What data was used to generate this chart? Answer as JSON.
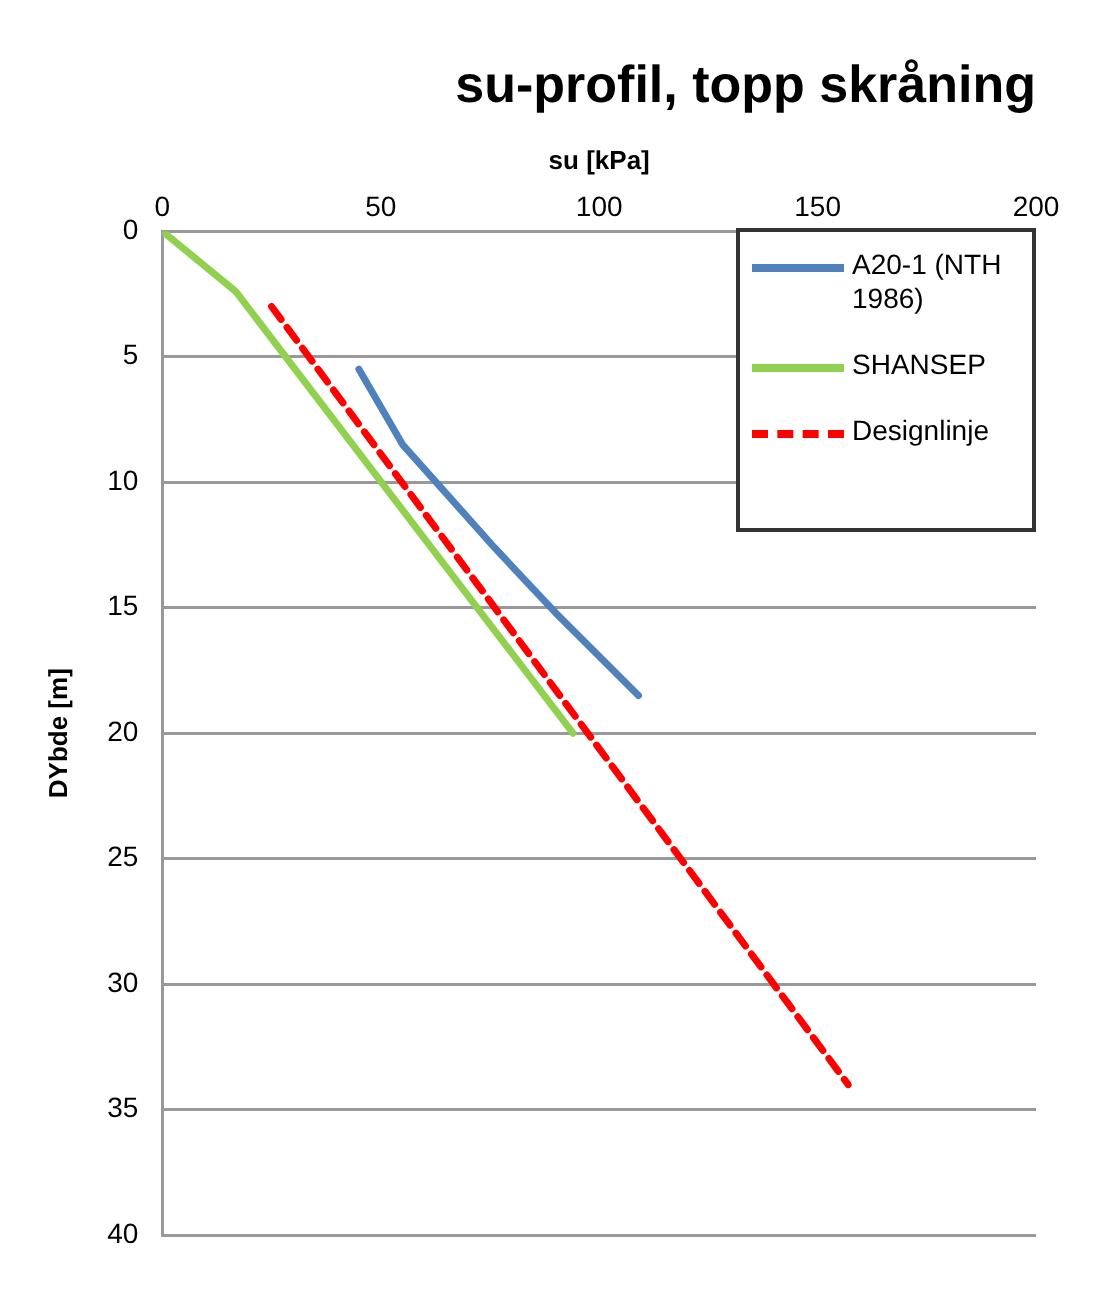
{
  "chart_data": {
    "type": "line",
    "title": "su-profil, topp skråning",
    "xlabel": "su [kPa]",
    "ylabel": "DYbde [m]",
    "xlim": [
      0,
      200
    ],
    "xticks": [
      0,
      50,
      100,
      150,
      200
    ],
    "ylim": [
      40,
      0
    ],
    "yticks": [
      0,
      5,
      10,
      15,
      20,
      25,
      30,
      35,
      40
    ],
    "grid": "y",
    "legend": "top right",
    "marker": "none",
    "series": [
      {
        "name": "A20-1 (NTH 1986)",
        "color": "#4f81bd",
        "x": [
          45,
          55,
          76,
          90,
          109
        ],
        "values": [
          5.5,
          8.5,
          12.6,
          15.2,
          18.5
        ],
        "line_style": "solid"
      },
      {
        "name": "SHANSEP",
        "color": "#92d050",
        "x": [
          0,
          16.8,
          94
        ],
        "values": [
          0,
          2.4,
          20
        ],
        "line_style": "solid"
      },
      {
        "name": "Designlinje",
        "color": "#ff0000",
        "x": [
          25,
          157
        ],
        "values": [
          3,
          34
        ],
        "line_style": "dashed"
      }
    ]
  }
}
